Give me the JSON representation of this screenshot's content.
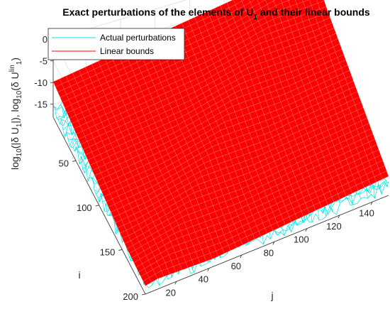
{
  "chart_data": {
    "type": "surface",
    "title": "Exact perturbations of the elements of U",
    "title_sub": "1",
    "title_tail": " and their linear bounds",
    "xlabel": "j",
    "ylabel": "i",
    "zlabel_parts": [
      {
        "t": "log",
        "s": "n"
      },
      {
        "t": "10",
        "s": "sub"
      },
      {
        "t": "(|δ U",
        "s": "n"
      },
      {
        "t": "1",
        "s": "sub"
      },
      {
        "t": "|), log",
        "s": "n"
      },
      {
        "t": "10",
        "s": "sub"
      },
      {
        "t": "(δ U",
        "s": "n"
      },
      {
        "t": "lin",
        "s": "sup"
      },
      {
        "t": "1",
        "s": "sub"
      },
      {
        "t": ")",
        "s": "n"
      }
    ],
    "j_range": [
      1,
      150
    ],
    "i_range": [
      1,
      200
    ],
    "zlim": [
      -18,
      0
    ],
    "x_ticks": [
      "20",
      "40",
      "60",
      "80",
      "100",
      "120",
      "140"
    ],
    "x_tick_values": [
      20,
      40,
      60,
      80,
      100,
      120,
      140
    ],
    "y_ticks": [
      "50",
      "100",
      "150",
      "200"
    ],
    "y_tick_values": [
      50,
      100,
      150,
      200
    ],
    "z_ticks": [
      "0",
      "-5",
      "-10",
      "-15"
    ],
    "z_tick_values": [
      0,
      -5,
      -10,
      -15
    ],
    "grid": true,
    "legend_position": "top-left",
    "series": [
      {
        "name": "Actual perturbations",
        "color": "#00e5e5",
        "level_mean": -16.0,
        "level_spread": 1.6
      },
      {
        "name": "Linear bounds",
        "color": "#ff0000",
        "corner_i1_j1": -9.8,
        "corner_i1_j150": -0.3,
        "corner_i200_j1": -17.2,
        "corner_i200_j150": -13.6
      }
    ]
  }
}
